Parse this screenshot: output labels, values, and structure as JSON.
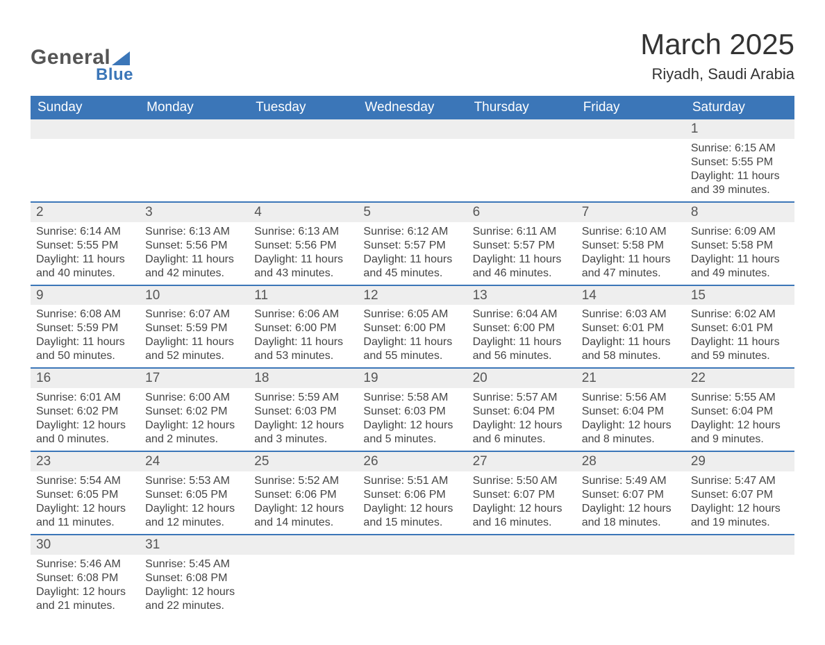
{
  "logo": {
    "line1": "General",
    "line2": "Blue"
  },
  "title": "March 2025",
  "location": "Riyadh, Saudi Arabia",
  "styling": {
    "header_bg": "#3b76b8",
    "header_text": "#ffffff",
    "row_separator": "#3b76b8",
    "daynum_bg": "#eeeeee",
    "body_text": "#444444",
    "title_fontsize": 42,
    "location_fontsize": 22,
    "header_fontsize": 19,
    "cell_fontsize": 16,
    "columns": 7
  },
  "weekdays": [
    "Sunday",
    "Monday",
    "Tuesday",
    "Wednesday",
    "Thursday",
    "Friday",
    "Saturday"
  ],
  "weeks": [
    [
      null,
      null,
      null,
      null,
      null,
      null,
      {
        "n": "1",
        "sr": "Sunrise: 6:15 AM",
        "ss": "Sunset: 5:55 PM",
        "dl": "Daylight: 11 hours and 39 minutes."
      }
    ],
    [
      {
        "n": "2",
        "sr": "Sunrise: 6:14 AM",
        "ss": "Sunset: 5:55 PM",
        "dl": "Daylight: 11 hours and 40 minutes."
      },
      {
        "n": "3",
        "sr": "Sunrise: 6:13 AM",
        "ss": "Sunset: 5:56 PM",
        "dl": "Daylight: 11 hours and 42 minutes."
      },
      {
        "n": "4",
        "sr": "Sunrise: 6:13 AM",
        "ss": "Sunset: 5:56 PM",
        "dl": "Daylight: 11 hours and 43 minutes."
      },
      {
        "n": "5",
        "sr": "Sunrise: 6:12 AM",
        "ss": "Sunset: 5:57 PM",
        "dl": "Daylight: 11 hours and 45 minutes."
      },
      {
        "n": "6",
        "sr": "Sunrise: 6:11 AM",
        "ss": "Sunset: 5:57 PM",
        "dl": "Daylight: 11 hours and 46 minutes."
      },
      {
        "n": "7",
        "sr": "Sunrise: 6:10 AM",
        "ss": "Sunset: 5:58 PM",
        "dl": "Daylight: 11 hours and 47 minutes."
      },
      {
        "n": "8",
        "sr": "Sunrise: 6:09 AM",
        "ss": "Sunset: 5:58 PM",
        "dl": "Daylight: 11 hours and 49 minutes."
      }
    ],
    [
      {
        "n": "9",
        "sr": "Sunrise: 6:08 AM",
        "ss": "Sunset: 5:59 PM",
        "dl": "Daylight: 11 hours and 50 minutes."
      },
      {
        "n": "10",
        "sr": "Sunrise: 6:07 AM",
        "ss": "Sunset: 5:59 PM",
        "dl": "Daylight: 11 hours and 52 minutes."
      },
      {
        "n": "11",
        "sr": "Sunrise: 6:06 AM",
        "ss": "Sunset: 6:00 PM",
        "dl": "Daylight: 11 hours and 53 minutes."
      },
      {
        "n": "12",
        "sr": "Sunrise: 6:05 AM",
        "ss": "Sunset: 6:00 PM",
        "dl": "Daylight: 11 hours and 55 minutes."
      },
      {
        "n": "13",
        "sr": "Sunrise: 6:04 AM",
        "ss": "Sunset: 6:00 PM",
        "dl": "Daylight: 11 hours and 56 minutes."
      },
      {
        "n": "14",
        "sr": "Sunrise: 6:03 AM",
        "ss": "Sunset: 6:01 PM",
        "dl": "Daylight: 11 hours and 58 minutes."
      },
      {
        "n": "15",
        "sr": "Sunrise: 6:02 AM",
        "ss": "Sunset: 6:01 PM",
        "dl": "Daylight: 11 hours and 59 minutes."
      }
    ],
    [
      {
        "n": "16",
        "sr": "Sunrise: 6:01 AM",
        "ss": "Sunset: 6:02 PM",
        "dl": "Daylight: 12 hours and 0 minutes."
      },
      {
        "n": "17",
        "sr": "Sunrise: 6:00 AM",
        "ss": "Sunset: 6:02 PM",
        "dl": "Daylight: 12 hours and 2 minutes."
      },
      {
        "n": "18",
        "sr": "Sunrise: 5:59 AM",
        "ss": "Sunset: 6:03 PM",
        "dl": "Daylight: 12 hours and 3 minutes."
      },
      {
        "n": "19",
        "sr": "Sunrise: 5:58 AM",
        "ss": "Sunset: 6:03 PM",
        "dl": "Daylight: 12 hours and 5 minutes."
      },
      {
        "n": "20",
        "sr": "Sunrise: 5:57 AM",
        "ss": "Sunset: 6:04 PM",
        "dl": "Daylight: 12 hours and 6 minutes."
      },
      {
        "n": "21",
        "sr": "Sunrise: 5:56 AM",
        "ss": "Sunset: 6:04 PM",
        "dl": "Daylight: 12 hours and 8 minutes."
      },
      {
        "n": "22",
        "sr": "Sunrise: 5:55 AM",
        "ss": "Sunset: 6:04 PM",
        "dl": "Daylight: 12 hours and 9 minutes."
      }
    ],
    [
      {
        "n": "23",
        "sr": "Sunrise: 5:54 AM",
        "ss": "Sunset: 6:05 PM",
        "dl": "Daylight: 12 hours and 11 minutes."
      },
      {
        "n": "24",
        "sr": "Sunrise: 5:53 AM",
        "ss": "Sunset: 6:05 PM",
        "dl": "Daylight: 12 hours and 12 minutes."
      },
      {
        "n": "25",
        "sr": "Sunrise: 5:52 AM",
        "ss": "Sunset: 6:06 PM",
        "dl": "Daylight: 12 hours and 14 minutes."
      },
      {
        "n": "26",
        "sr": "Sunrise: 5:51 AM",
        "ss": "Sunset: 6:06 PM",
        "dl": "Daylight: 12 hours and 15 minutes."
      },
      {
        "n": "27",
        "sr": "Sunrise: 5:50 AM",
        "ss": "Sunset: 6:07 PM",
        "dl": "Daylight: 12 hours and 16 minutes."
      },
      {
        "n": "28",
        "sr": "Sunrise: 5:49 AM",
        "ss": "Sunset: 6:07 PM",
        "dl": "Daylight: 12 hours and 18 minutes."
      },
      {
        "n": "29",
        "sr": "Sunrise: 5:47 AM",
        "ss": "Sunset: 6:07 PM",
        "dl": "Daylight: 12 hours and 19 minutes."
      }
    ],
    [
      {
        "n": "30",
        "sr": "Sunrise: 5:46 AM",
        "ss": "Sunset: 6:08 PM",
        "dl": "Daylight: 12 hours and 21 minutes."
      },
      {
        "n": "31",
        "sr": "Sunrise: 5:45 AM",
        "ss": "Sunset: 6:08 PM",
        "dl": "Daylight: 12 hours and 22 minutes."
      },
      null,
      null,
      null,
      null,
      null
    ]
  ]
}
